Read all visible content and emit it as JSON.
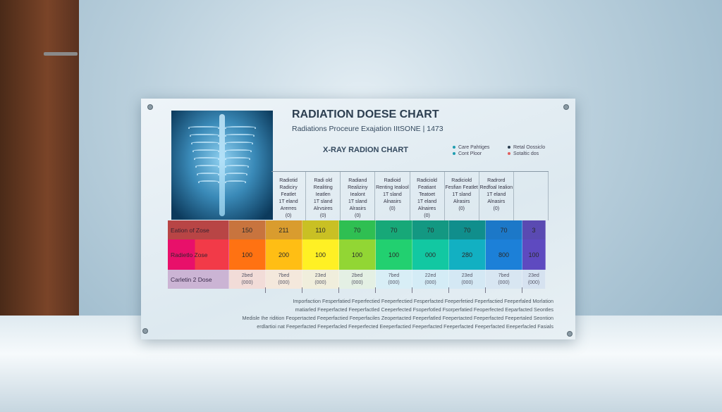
{
  "poster": {
    "title": "RADIATION DOESE CHART",
    "subtitle": "Radiations Proceure Exajation IItSONE | 1473",
    "chart_title": "X-RAY RADION CHART",
    "legend": [
      {
        "label": "Care Pahtiges",
        "color": "#1f9db0"
      },
      {
        "label": "Retal Oossiclo",
        "color": "#2c3e50"
      },
      {
        "label": "Cont Ploor",
        "color": "#1f9db0"
      },
      {
        "label": "Sotaltic dos",
        "color": "#e06060"
      }
    ],
    "columns": [
      {
        "l1": "Radiotid Radiciry Featlet",
        "l2": "1T eland",
        "l3": "Arerres",
        "l4": "(0)"
      },
      {
        "l1": "Radi old Realiting Ieatlen",
        "l2": "1T sland",
        "l3": "Alrvsires",
        "l4": "(0)"
      },
      {
        "l1": "Radiand Realiziny Iealont",
        "l2": "1T sland",
        "l3": "Alrasirs",
        "l4": "(0)"
      },
      {
        "l1": "Radioid Renting Iealool",
        "l2": "1T sland",
        "l3": "Alnasirs",
        "l4": "(0)"
      },
      {
        "l1": "Radiciold Featiant Teatoet",
        "l2": "1T eland",
        "l3": "Alnaires",
        "l4": "(0)"
      },
      {
        "l1": "Radiciold Fesfian Featlet",
        "l2": "1T sland",
        "l3": "Alrasirs",
        "l4": "(0)"
      },
      {
        "l1": "Radrord Redfoal Iealion",
        "l2": "1T eland",
        "l3": "Alnasirs",
        "l4": "(0)"
      }
    ],
    "rows": [
      {
        "label": "Eation of Zose",
        "label_color": "#b84545",
        "values": [
          "150",
          "211",
          "110",
          "70",
          "70",
          "70",
          "70",
          "70",
          "3"
        ],
        "colors": [
          "#c8743e",
          "#d99c2e",
          "#c9c024",
          "#2fbf52",
          "#17a878",
          "#139882",
          "#108e8c",
          "#1c78c8",
          "#5a4ab2"
        ]
      },
      {
        "label": "Radietlo Zose",
        "label_color": "#ec2a5a",
        "values": [
          "100",
          "200",
          "100",
          "100",
          "100",
          "000",
          "280",
          "800",
          "100"
        ],
        "colors": [
          "#ff7212",
          "#ffbe14",
          "#fff024",
          "#92d634",
          "#22d070",
          "#12c8a2",
          "#12b0c2",
          "#1c80d8",
          "#5e4ac0"
        ]
      },
      {
        "label": "Carletin 2 Dose",
        "label_color": "#cbb4d4",
        "values": [
          "2bed (000)",
          "7bed (000)",
          "23ed (000)",
          "2bed (000)",
          "7bed (000)",
          "22ed (000)",
          "23ed (000)",
          "7bed (000)",
          "23ed (000)"
        ],
        "colors": [
          "#f2dcd8",
          "#f4e8dc",
          "#f0eedc",
          "#e4f0e4",
          "#d8eef6",
          "#d4ecf6",
          "#d4e8f4",
          "#d8e6f2",
          "#d6e2f0"
        ]
      }
    ],
    "notes": [
      "Imporfaction Fesperfatied Feperfectied Feeperfectied Fesperfacted Feeperfetied Feperfactied Feeperfaled Morlation",
      "matiarled Feeperfacted Feeperfactled Ceeperfected Fsoperfotled Fsorperfatied Feoperfected Eeparfacted Seontles",
      "Medisle Ihe ridition Feopertacted Feeperfactied Feeperfaciles Zeopertacted Feeperfatled Feepertacted Feeperfacted Feepertaled Seontion",
      "erdlartioi nat Feeperfacted Feeperfacled Feeperfected Eeeperfactied Feeperfacted Feeperfacted Feeperfacted Eeeperfacled Fasials"
    ]
  }
}
